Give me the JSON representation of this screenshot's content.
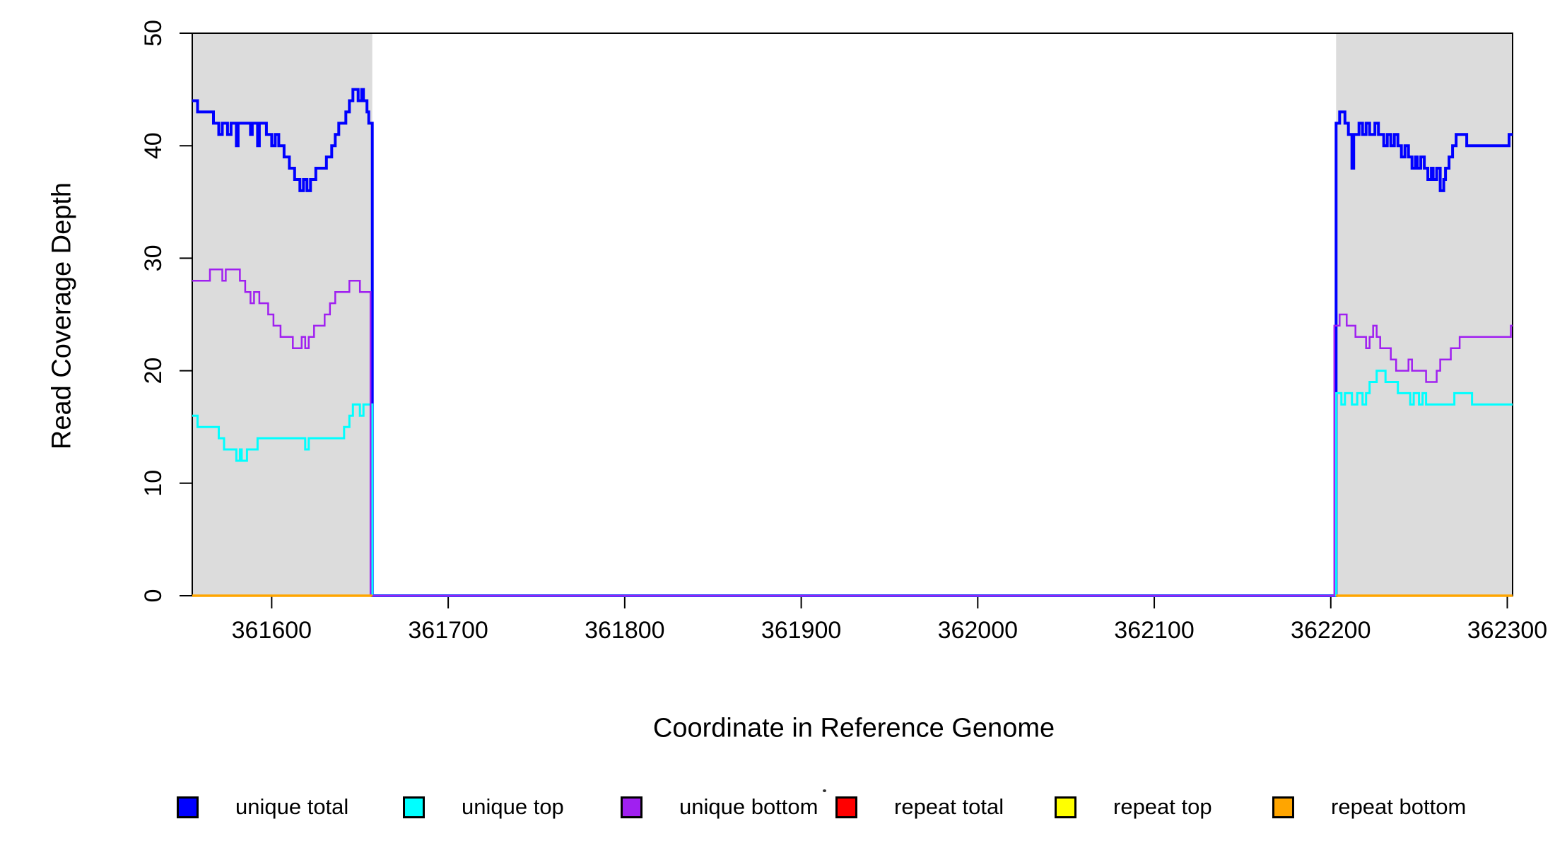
{
  "figure": {
    "background": "#FFFFFF",
    "plot_shading_color": "#DCDCDC",
    "axis_color": "#000000"
  },
  "legend": {
    "position": "bottom",
    "items": [
      {
        "label": "unique total",
        "color": "#0000FF"
      },
      {
        "label": "unique top",
        "color": "#00FFFF"
      },
      {
        "label": "unique bottom",
        "color": "#A020F0"
      },
      {
        "label": "repeat total",
        "color": "#FF0000"
      },
      {
        "label": "repeat top",
        "color": "#FFFF00"
      },
      {
        "label": "repeat bottom",
        "color": "#FFA500"
      }
    ]
  },
  "chart_data": {
    "type": "line",
    "step": true,
    "title": "",
    "xlabel": "Coordinate in Reference Genome",
    "ylabel": "Read Coverage Depth",
    "xlim": [
      361555,
      362303
    ],
    "ylim": [
      0,
      50
    ],
    "x_ticks": [
      361600,
      361700,
      361800,
      361900,
      362000,
      362100,
      362200,
      362300
    ],
    "y_ticks": [
      0,
      10,
      20,
      30,
      40,
      50
    ],
    "grid": false,
    "legend_position": "bottom",
    "shaded_regions": [
      {
        "x0": 361555,
        "x1": 361657,
        "color": "#DCDCDC"
      },
      {
        "x0": 362203,
        "x1": 362303,
        "color": "#DCDCDC"
      }
    ],
    "series": [
      {
        "name": "unique total",
        "color": "#0000FF",
        "width": 4,
        "segments": [
          [
            [
              361555,
              44
            ],
            [
              361558,
              43
            ],
            [
              361567,
              42
            ],
            [
              361570,
              41
            ],
            [
              361572,
              42
            ],
            [
              361575,
              41
            ],
            [
              361577,
              42
            ],
            [
              361580,
              40
            ],
            [
              361581,
              42
            ],
            [
              361588,
              41
            ],
            [
              361589,
              42
            ],
            [
              361592,
              40
            ],
            [
              361593,
              42
            ],
            [
              361597,
              41
            ],
            [
              361600,
              40
            ],
            [
              361602,
              41
            ],
            [
              361604,
              40
            ],
            [
              361607,
              39
            ],
            [
              361610,
              38
            ],
            [
              361613,
              37
            ],
            [
              361616,
              36
            ],
            [
              361618,
              37
            ],
            [
              361620,
              36
            ],
            [
              361622,
              37
            ],
            [
              361625,
              38
            ],
            [
              361628,
              38
            ],
            [
              361631,
              39
            ],
            [
              361634,
              40
            ],
            [
              361636,
              41
            ],
            [
              361638,
              42
            ],
            [
              361640,
              42
            ],
            [
              361642,
              43
            ],
            [
              361644,
              44
            ],
            [
              361646,
              45
            ],
            [
              361649,
              44
            ],
            [
              361651,
              45
            ],
            [
              361652,
              44
            ],
            [
              361654,
              43
            ],
            [
              361655,
              42
            ],
            [
              361657,
              0
            ],
            [
              362203,
              42
            ],
            [
              362205,
              43
            ],
            [
              362208,
              42
            ],
            [
              362210,
              41
            ],
            [
              362212,
              38
            ],
            [
              362213,
              41
            ],
            [
              362216,
              42
            ],
            [
              362218,
              41
            ],
            [
              362220,
              42
            ],
            [
              362222,
              41
            ],
            [
              362225,
              42
            ],
            [
              362227,
              41
            ],
            [
              362230,
              40
            ],
            [
              362232,
              41
            ],
            [
              362234,
              40
            ],
            [
              362236,
              41
            ],
            [
              362238,
              40
            ],
            [
              362240,
              39
            ],
            [
              362242,
              40
            ],
            [
              362244,
              39
            ],
            [
              362246,
              38
            ],
            [
              362248,
              39
            ],
            [
              362249,
              38
            ],
            [
              362251,
              39
            ],
            [
              362253,
              38
            ],
            [
              362255,
              37
            ],
            [
              362257,
              38
            ],
            [
              362258,
              37
            ],
            [
              362260,
              38
            ],
            [
              362262,
              36
            ],
            [
              362264,
              37
            ],
            [
              362265,
              38
            ],
            [
              362267,
              39
            ],
            [
              362269,
              40
            ],
            [
              362271,
              41
            ],
            [
              362277,
              40
            ],
            [
              362301,
              41
            ],
            [
              362303,
              41
            ]
          ]
        ]
      },
      {
        "name": "unique top",
        "color": "#00FFFF",
        "width": 3,
        "segments": [
          [
            [
              361555,
              16
            ],
            [
              361558,
              15
            ],
            [
              361567,
              15
            ],
            [
              361570,
              14
            ],
            [
              361573,
              13
            ],
            [
              361580,
              12
            ],
            [
              361582,
              13
            ],
            [
              361583,
              12
            ],
            [
              361586,
              13
            ],
            [
              361592,
              14
            ],
            [
              361619,
              13
            ],
            [
              361621,
              14
            ],
            [
              361639,
              14
            ],
            [
              361641,
              15
            ],
            [
              361644,
              16
            ],
            [
              361646,
              17
            ],
            [
              361650,
              16
            ],
            [
              361652,
              17
            ],
            [
              361657,
              0
            ],
            [
              362203,
              18
            ],
            [
              362206,
              17
            ],
            [
              362208,
              18
            ],
            [
              362212,
              17
            ],
            [
              362215,
              18
            ],
            [
              362218,
              17
            ],
            [
              362220,
              18
            ],
            [
              362222,
              19
            ],
            [
              362226,
              20
            ],
            [
              362231,
              19
            ],
            [
              362238,
              18
            ],
            [
              362245,
              17
            ],
            [
              362247,
              18
            ],
            [
              362250,
              17
            ],
            [
              362252,
              18
            ],
            [
              362254,
              17
            ],
            [
              362270,
              18
            ],
            [
              362280,
              17
            ],
            [
              362303,
              17
            ]
          ]
        ]
      },
      {
        "name": "unique bottom",
        "color": "#A020F0",
        "width": 2.5,
        "segments": [
          [
            [
              361555,
              28
            ],
            [
              361565,
              29
            ],
            [
              361572,
              28
            ],
            [
              361574,
              29
            ],
            [
              361582,
              28
            ],
            [
              361585,
              27
            ],
            [
              361588,
              26
            ],
            [
              361590,
              27
            ],
            [
              361593,
              26
            ],
            [
              361598,
              25
            ],
            [
              361601,
              24
            ],
            [
              361605,
              23
            ],
            [
              361609,
              23
            ],
            [
              361612,
              22
            ],
            [
              361615,
              22
            ],
            [
              361617,
              23
            ],
            [
              361619,
              22
            ],
            [
              361621,
              23
            ],
            [
              361624,
              24
            ],
            [
              361627,
              24
            ],
            [
              361630,
              25
            ],
            [
              361633,
              26
            ],
            [
              361636,
              27
            ],
            [
              361641,
              27
            ],
            [
              361644,
              28
            ],
            [
              361648,
              28
            ],
            [
              361650,
              27
            ],
            [
              361653,
              27
            ],
            [
              361656,
              0
            ],
            [
              362202,
              24
            ],
            [
              362205,
              25
            ],
            [
              362209,
              24
            ],
            [
              362214,
              23
            ],
            [
              362220,
              22
            ],
            [
              362222,
              23
            ],
            [
              362224,
              24
            ],
            [
              362226,
              23
            ],
            [
              362228,
              22
            ],
            [
              362234,
              21
            ],
            [
              362237,
              20
            ],
            [
              362242,
              20
            ],
            [
              362244,
              21
            ],
            [
              362246,
              20
            ],
            [
              362254,
              19
            ],
            [
              362260,
              20
            ],
            [
              362262,
              21
            ],
            [
              362266,
              21
            ],
            [
              362268,
              22
            ],
            [
              362271,
              22
            ],
            [
              362273,
              23
            ],
            [
              362300,
              23
            ],
            [
              362302,
              24
            ],
            [
              362303,
              24
            ]
          ]
        ]
      },
      {
        "name": "repeat total",
        "color": "#FF0000",
        "width": 2.5,
        "segments": [
          [
            [
              361555,
              0
            ],
            [
              361657,
              0
            ]
          ],
          [
            [
              362203,
              0
            ],
            [
              362303,
              0
            ]
          ]
        ]
      },
      {
        "name": "repeat top",
        "color": "#FFFF00",
        "width": 2.5,
        "segments": [
          [
            [
              361555,
              0
            ],
            [
              361657,
              0
            ]
          ],
          [
            [
              362203,
              0
            ],
            [
              362303,
              0
            ]
          ]
        ]
      },
      {
        "name": "repeat bottom",
        "color": "#FFA500",
        "width": 3.5,
        "segments": [
          [
            [
              361555,
              0
            ],
            [
              361657,
              0
            ]
          ],
          [
            [
              362203,
              0
            ],
            [
              362303,
              0
            ]
          ]
        ]
      }
    ]
  }
}
